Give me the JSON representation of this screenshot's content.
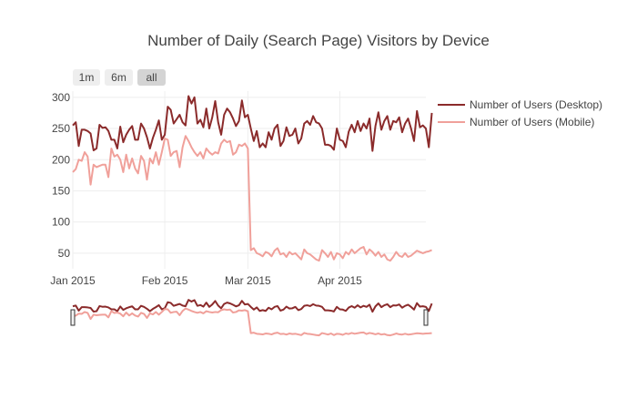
{
  "chart_data": {
    "type": "line",
    "title": "Number of Daily (Search Page) Visitors by Device",
    "xlabel": "",
    "ylabel": "",
    "x_start": "2015-01-01",
    "x_end": "2015-04-30",
    "ylim": [
      25,
      310
    ],
    "yticks": [
      50,
      100,
      150,
      200,
      250,
      300
    ],
    "xticks": [
      {
        "date": "2015-01-01",
        "label": "Jan 2015"
      },
      {
        "date": "2015-02-01",
        "label": "Feb 2015"
      },
      {
        "date": "2015-03-01",
        "label": "Mar 2015"
      },
      {
        "date": "2015-04-01",
        "label": "Apr 2015"
      }
    ],
    "grid": true,
    "legend_position": "top-right",
    "range_buttons": [
      {
        "label": "1m",
        "active": false
      },
      {
        "label": "6m",
        "active": false
      },
      {
        "label": "all",
        "active": true
      }
    ],
    "range_slider": true,
    "series": [
      {
        "name": "Number of Users (Desktop)",
        "color": "#8b2b2b",
        "values": [
          255,
          260,
          222,
          248,
          248,
          246,
          242,
          215,
          218,
          256,
          251,
          252,
          246,
          232,
          232,
          218,
          253,
          228,
          240,
          248,
          254,
          232,
          232,
          258,
          250,
          236,
          218,
          235,
          248,
          263,
          232,
          240,
          285,
          280,
          258,
          265,
          272,
          260,
          255,
          302,
          290,
          300,
          258,
          264,
          252,
          282,
          250,
          268,
          294,
          260,
          240,
          272,
          282,
          276,
          266,
          254,
          262,
          295,
          268,
          272,
          250,
          230,
          246,
          220,
          226,
          220,
          244,
          232,
          250,
          256,
          222,
          230,
          252,
          238,
          240,
          250,
          226,
          234,
          258,
          262,
          256,
          270,
          260,
          258,
          250,
          224,
          224,
          222,
          216,
          250,
          232,
          230,
          220,
          245,
          256,
          244,
          262,
          246,
          258,
          250,
          266,
          214,
          254,
          276,
          248,
          262,
          270,
          248,
          262,
          260,
          268,
          244,
          258,
          266,
          250,
          230,
          278,
          252,
          255,
          250,
          220,
          275
        ]
      },
      {
        "name": "Number of Users (Mobile)",
        "color": "#f0a09a",
        "values": [
          180,
          185,
          200,
          198,
          212,
          205,
          160,
          192,
          188,
          190,
          192,
          192,
          172,
          218,
          205,
          208,
          200,
          180,
          208,
          186,
          202,
          186,
          178,
          206,
          198,
          168,
          202,
          194,
          212,
          192,
          212,
          234,
          232,
          206,
          212,
          214,
          188,
          220,
          238,
          230,
          220,
          212,
          206,
          212,
          202,
          218,
          212,
          208,
          212,
          210,
          226,
          232,
          228,
          230,
          208,
          212,
          224,
          222,
          226,
          218,
          55,
          58,
          50,
          48,
          45,
          52,
          50,
          45,
          54,
          58,
          48,
          50,
          44,
          52,
          48,
          50,
          45,
          40,
          56,
          50,
          48,
          44,
          40,
          38,
          55,
          50,
          44,
          52,
          40,
          50,
          48,
          42,
          52,
          48,
          56,
          50,
          54,
          58,
          60,
          48,
          56,
          52,
          46,
          52,
          44,
          48,
          40,
          38,
          44,
          52,
          46,
          44,
          50,
          44,
          46,
          50,
          54,
          52,
          50,
          52,
          53,
          55
        ]
      }
    ]
  }
}
